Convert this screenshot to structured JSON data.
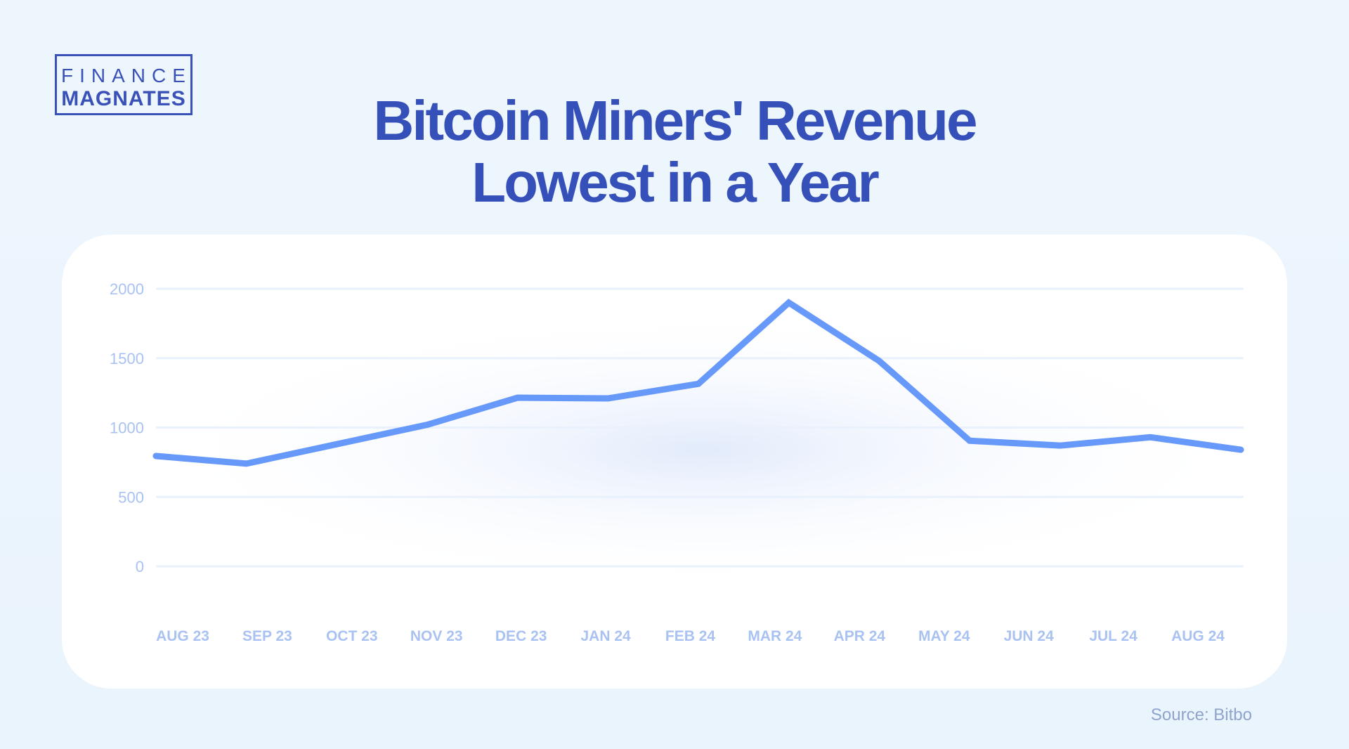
{
  "logo": {
    "line1": "FINANCE",
    "line2": "MAGNATES"
  },
  "title": {
    "line1": "Bitcoin Miners' Revenue",
    "line2": "Lowest in a Year"
  },
  "source": "Source: Bitbo",
  "colors": {
    "line": "#6699f9",
    "title": "#3550b8",
    "tick": "#a9c2f2",
    "grid": "#e8f1fc"
  },
  "chart_data": {
    "type": "line",
    "title": "Bitcoin Miners' Revenue Lowest in a Year",
    "categories": [
      "AUG 23",
      "SEP 23",
      "OCT 23",
      "NOV 23",
      "DEC 23",
      "JAN 24",
      "FEB 24",
      "MAR 24",
      "APR 24",
      "MAY 24",
      "JUN 24",
      "JUL 24",
      "AUG 24"
    ],
    "values": [
      795,
      740,
      880,
      1020,
      1215,
      1210,
      1315,
      1900,
      1480,
      905,
      870,
      930,
      840
    ],
    "yticks": [
      0,
      500,
      1000,
      1500,
      2000
    ],
    "ylim": [
      0,
      2000
    ],
    "grid": true,
    "xlabel": "",
    "ylabel": ""
  }
}
